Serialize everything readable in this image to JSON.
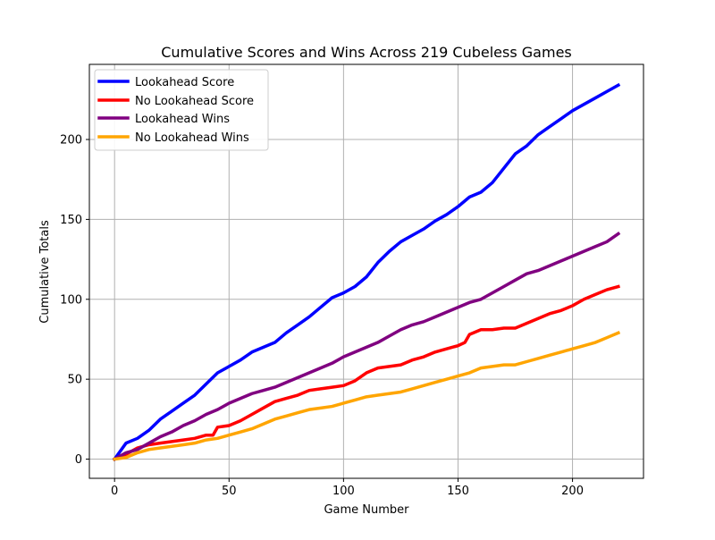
{
  "chart_data": {
    "type": "line",
    "title": "Cumulative Scores and Wins Across 219 Cubeless Games",
    "xlabel": "Game Number",
    "ylabel": "Cumulative Totals",
    "xlim": [
      -11,
      231
    ],
    "ylim": [
      -12,
      247
    ],
    "xticks": [
      0,
      50,
      100,
      150,
      200
    ],
    "yticks": [
      0,
      50,
      100,
      150,
      200
    ],
    "grid": true,
    "legend_position": "top-left",
    "series": [
      {
        "name": "Lookahead Score",
        "color": "#0000ff",
        "x": [
          0,
          5,
          10,
          15,
          20,
          25,
          30,
          35,
          40,
          45,
          50,
          55,
          60,
          65,
          70,
          75,
          80,
          85,
          90,
          95,
          100,
          105,
          110,
          115,
          120,
          125,
          130,
          135,
          140,
          145,
          150,
          155,
          160,
          165,
          170,
          175,
          180,
          185,
          190,
          195,
          200,
          205,
          210,
          215,
          220
        ],
        "values": [
          0,
          10,
          13,
          18,
          25,
          30,
          35,
          40,
          47,
          54,
          58,
          62,
          67,
          70,
          73,
          79,
          84,
          89,
          95,
          101,
          104,
          108,
          114,
          123,
          130,
          136,
          140,
          144,
          149,
          153,
          158,
          164,
          167,
          173,
          182,
          191,
          196,
          203,
          208,
          213,
          218,
          222,
          226,
          230,
          234
        ]
      },
      {
        "name": "No Lookahead Score",
        "color": "#ff0000",
        "x": [
          0,
          5,
          10,
          15,
          20,
          25,
          30,
          35,
          40,
          43,
          45,
          50,
          55,
          60,
          65,
          70,
          75,
          80,
          85,
          90,
          95,
          100,
          105,
          110,
          115,
          120,
          125,
          130,
          135,
          140,
          145,
          150,
          153,
          155,
          160,
          165,
          170,
          175,
          180,
          185,
          190,
          195,
          200,
          205,
          210,
          215,
          220
        ],
        "values": [
          0,
          3,
          7,
          9,
          10,
          11,
          12,
          13,
          15,
          15,
          20,
          21,
          24,
          28,
          32,
          36,
          38,
          40,
          43,
          44,
          45,
          46,
          49,
          54,
          57,
          58,
          59,
          62,
          64,
          67,
          69,
          71,
          73,
          78,
          81,
          81,
          82,
          82,
          85,
          88,
          91,
          93,
          96,
          100,
          103,
          106,
          108
        ]
      },
      {
        "name": "Lookahead Wins",
        "color": "#800080",
        "x": [
          0,
          5,
          10,
          15,
          20,
          25,
          30,
          35,
          40,
          45,
          50,
          55,
          60,
          65,
          70,
          75,
          80,
          85,
          90,
          95,
          100,
          105,
          110,
          115,
          120,
          125,
          130,
          135,
          140,
          145,
          150,
          155,
          160,
          165,
          170,
          175,
          180,
          185,
          190,
          195,
          200,
          205,
          210,
          215,
          220
        ],
        "values": [
          0,
          4,
          6,
          10,
          14,
          17,
          21,
          24,
          28,
          31,
          35,
          38,
          41,
          43,
          45,
          48,
          51,
          54,
          57,
          60,
          64,
          67,
          70,
          73,
          77,
          81,
          84,
          86,
          89,
          92,
          95,
          98,
          100,
          104,
          108,
          112,
          116,
          118,
          121,
          124,
          127,
          130,
          133,
          136,
          141
        ]
      },
      {
        "name": "No Lookahead Wins",
        "color": "#ffa500",
        "x": [
          0,
          5,
          10,
          15,
          20,
          25,
          30,
          35,
          40,
          45,
          50,
          55,
          60,
          65,
          70,
          75,
          80,
          85,
          90,
          95,
          100,
          105,
          110,
          115,
          120,
          125,
          130,
          135,
          140,
          145,
          150,
          155,
          160,
          165,
          170,
          175,
          180,
          185,
          190,
          195,
          200,
          205,
          210,
          215,
          220
        ],
        "values": [
          0,
          1,
          4,
          6,
          7,
          8,
          9,
          10,
          12,
          13,
          15,
          17,
          19,
          22,
          25,
          27,
          29,
          31,
          32,
          33,
          35,
          37,
          39,
          40,
          41,
          42,
          44,
          46,
          48,
          50,
          52,
          54,
          57,
          58,
          59,
          59,
          61,
          63,
          65,
          67,
          69,
          71,
          73,
          76,
          79
        ]
      }
    ]
  }
}
